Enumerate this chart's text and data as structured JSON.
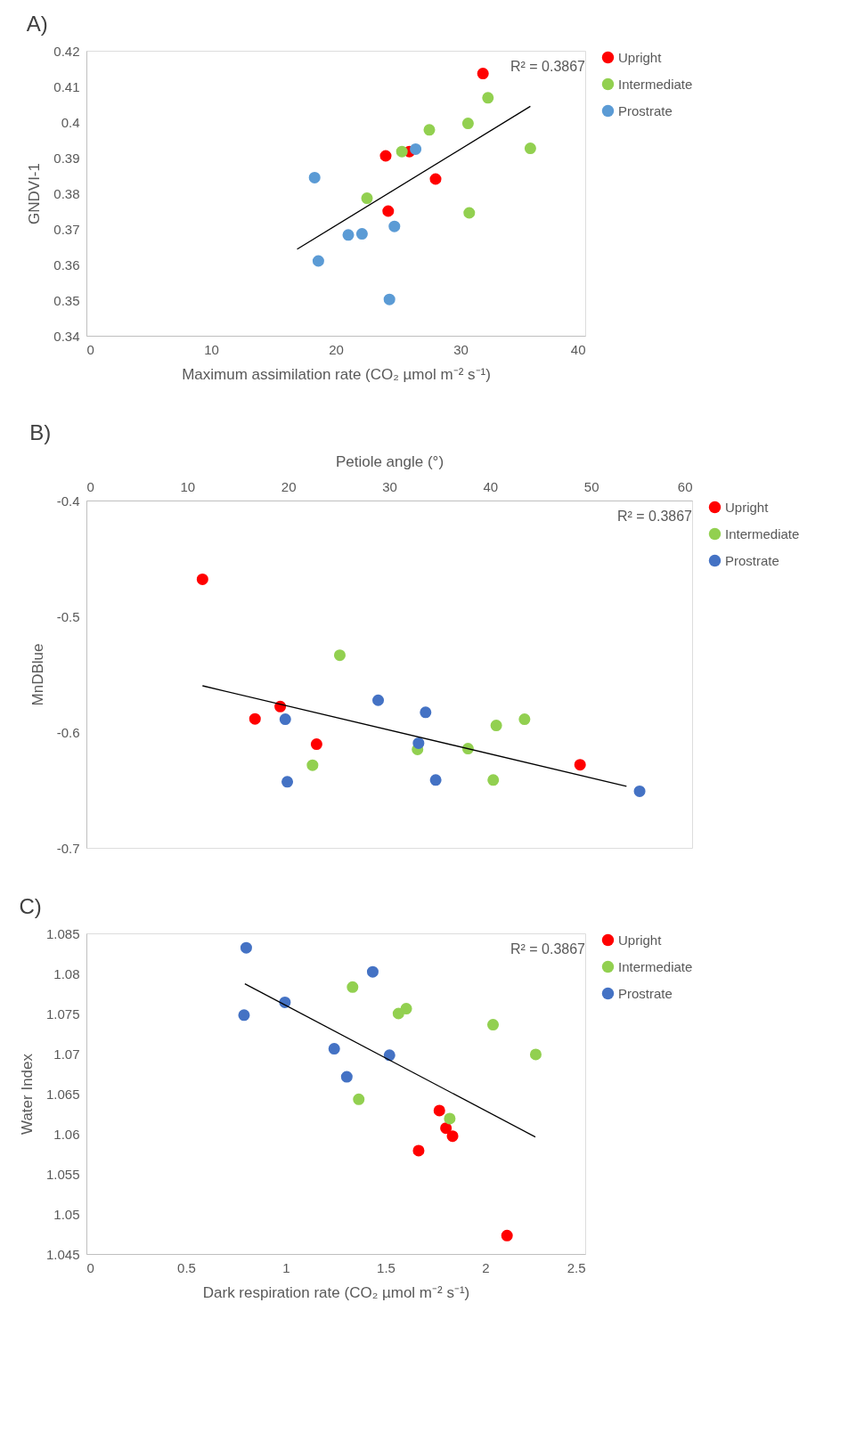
{
  "chart_data": [
    {
      "type": "scatter",
      "title": "A)",
      "xlabel": "Maximum assimilation rate (CO₂ µmol m⁻² s⁻¹)",
      "ylabel": "GNDVI-1",
      "annotations": [
        "R² = 0.3867"
      ],
      "xlim": [
        0,
        40
      ],
      "xticks": [
        0,
        10,
        20,
        30,
        40
      ],
      "ylim": [
        0.34,
        0.42
      ],
      "yticks": [
        0.34,
        0.35,
        0.36,
        0.37,
        0.38,
        0.39,
        0.4,
        0.41,
        0.42
      ],
      "legend": "top right",
      "marker": "circle",
      "series": [
        {
          "name": "Upright",
          "color": "#ff0000",
          "x": [
            31.8,
            24.0,
            25.9,
            28.0,
            24.2
          ],
          "values": [
            0.4136,
            0.3905,
            0.3917,
            0.384,
            0.375
          ]
        },
        {
          "name": "Intermediate",
          "color": "#92d050",
          "x": [
            32.2,
            30.6,
            27.5,
            25.3,
            35.6,
            22.5,
            30.7
          ],
          "values": [
            0.4068,
            0.3996,
            0.3978,
            0.3917,
            0.3926,
            0.3786,
            0.3745
          ]
        },
        {
          "name": "Prostrate",
          "color": "#5b9bd5",
          "x": [
            18.3,
            26.4,
            18.6,
            21.0,
            22.1,
            24.7,
            24.3
          ],
          "values": [
            0.3844,
            0.3924,
            0.361,
            0.3683,
            0.3686,
            0.3707,
            0.3502
          ]
        },
        {
          "type": "line",
          "marker": "none",
          "color": "#000000",
          "x": [
            16.9,
            35.6
          ],
          "values": [
            0.3643,
            0.4044
          ]
        }
      ]
    },
    {
      "type": "scatter",
      "title": "B)",
      "xlabel": "Petiole angle (°)",
      "ylabel": "MnDBlue",
      "annotations": [
        "R² = 0.3867"
      ],
      "xlim": [
        0,
        60
      ],
      "xticks": [
        0,
        10,
        20,
        30,
        40,
        50,
        60
      ],
      "ylim": [
        -0.7,
        -0.4
      ],
      "yticks": [
        -0.7,
        -0.6,
        -0.5,
        -0.4
      ],
      "legend": "top right",
      "marker": "circle",
      "series": [
        {
          "name": "Upright",
          "color": "#ff0000",
          "x": [
            11.5,
            16.7,
            19.2,
            22.8,
            48.9
          ],
          "values": [
            -0.468,
            -0.5886,
            -0.5779,
            -0.6104,
            -0.6282
          ]
        },
        {
          "name": "Intermediate",
          "color": "#92d050",
          "x": [
            25.1,
            22.4,
            32.8,
            37.8,
            40.6,
            43.4,
            40.3
          ],
          "values": [
            -0.5336,
            -0.6286,
            -0.615,
            -0.6143,
            -0.5943,
            -0.5889,
            -0.6414
          ]
        },
        {
          "name": "Prostrate",
          "color": "#4472c4",
          "x": [
            19.7,
            19.9,
            28.9,
            33.6,
            32.9,
            34.6,
            54.8
          ],
          "values": [
            -0.5889,
            -0.6429,
            -0.5725,
            -0.5829,
            -0.6096,
            -0.6414,
            -0.6511
          ]
        },
        {
          "type": "line",
          "marker": "none",
          "color": "#000000",
          "x": [
            11.5,
            53.5
          ],
          "values": [
            -0.56,
            -0.6468
          ]
        }
      ]
    },
    {
      "type": "scatter",
      "title": "C)",
      "xlabel": "Dark respiration rate (CO₂ µmol m⁻² s⁻¹)",
      "ylabel": "Water Index",
      "annotations": [
        "R² = 0.3867"
      ],
      "xlim": [
        0,
        2.5
      ],
      "xticks": [
        0,
        0.5,
        1,
        1.5,
        2,
        2.5
      ],
      "ylim": [
        1.045,
        1.085
      ],
      "yticks": [
        1.045,
        1.05,
        1.055,
        1.06,
        1.065,
        1.07,
        1.075,
        1.08,
        1.085
      ],
      "legend": "top right",
      "marker": "circle",
      "series": [
        {
          "name": "Upright",
          "color": "#ff0000",
          "x": [
            1.769,
            1.802,
            1.835,
            1.665,
            2.108
          ],
          "values": [
            1.0629,
            1.0607,
            1.0597,
            1.0579,
            1.0473
          ]
        },
        {
          "name": "Intermediate",
          "color": "#92d050",
          "x": [
            1.334,
            1.564,
            1.603,
            2.038,
            2.252,
            1.365,
            1.821
          ],
          "values": [
            1.0783,
            1.075,
            1.0756,
            1.0736,
            1.0699,
            1.0643,
            1.0619
          ]
        },
        {
          "name": "Prostrate",
          "color": "#4472c4",
          "x": [
            0.801,
            0.79,
            0.995,
            1.435,
            1.242,
            1.305,
            1.519
          ],
          "values": [
            1.0832,
            1.0748,
            1.0764,
            1.0802,
            1.0706,
            1.0671,
            1.0698
          ]
        },
        {
          "type": "line",
          "marker": "none",
          "color": "#000000",
          "x": [
            0.794,
            2.25
          ],
          "values": [
            1.0787,
            1.0596
          ]
        }
      ]
    }
  ]
}
